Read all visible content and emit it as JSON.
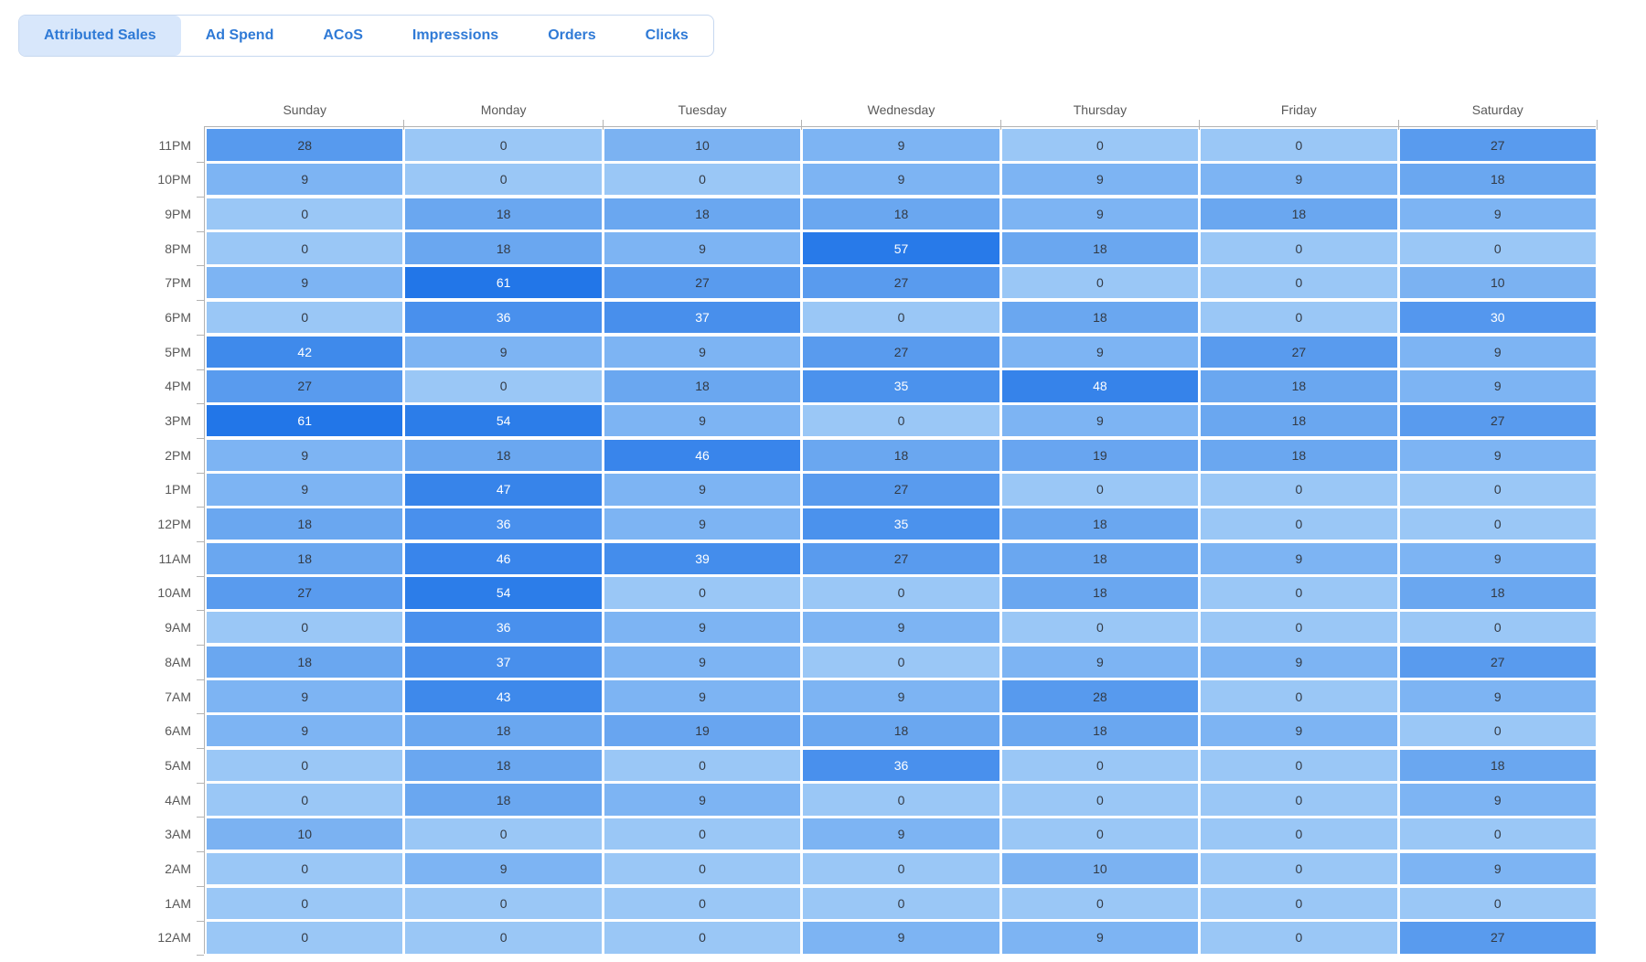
{
  "tabs": {
    "items": [
      {
        "label": "Attributed Sales",
        "active": true
      },
      {
        "label": "Ad Spend",
        "active": false
      },
      {
        "label": "ACoS",
        "active": false
      },
      {
        "label": "Impressions",
        "active": false
      },
      {
        "label": "Orders",
        "active": false
      },
      {
        "label": "Clicks",
        "active": false
      }
    ]
  },
  "chart_data": {
    "type": "heatmap",
    "title": "Attributed Sales",
    "columns": [
      "Sunday",
      "Monday",
      "Tuesday",
      "Wednesday",
      "Thursday",
      "Friday",
      "Saturday"
    ],
    "rows": [
      "11PM",
      "10PM",
      "9PM",
      "8PM",
      "7PM",
      "6PM",
      "5PM",
      "4PM",
      "3PM",
      "2PM",
      "1PM",
      "12PM",
      "11AM",
      "10AM",
      "9AM",
      "8AM",
      "7AM",
      "6AM",
      "5AM",
      "4AM",
      "3AM",
      "2AM",
      "1AM",
      "12AM"
    ],
    "values": [
      [
        28,
        0,
        10,
        9,
        0,
        0,
        27
      ],
      [
        9,
        0,
        0,
        9,
        9,
        9,
        18
      ],
      [
        0,
        18,
        18,
        18,
        9,
        18,
        9
      ],
      [
        0,
        18,
        9,
        57,
        18,
        0,
        0
      ],
      [
        9,
        61,
        27,
        27,
        0,
        0,
        10
      ],
      [
        0,
        36,
        37,
        0,
        18,
        0,
        30
      ],
      [
        42,
        9,
        9,
        27,
        9,
        27,
        9
      ],
      [
        27,
        0,
        18,
        35,
        48,
        18,
        9
      ],
      [
        61,
        54,
        9,
        0,
        9,
        18,
        27
      ],
      [
        9,
        18,
        46,
        18,
        19,
        18,
        9
      ],
      [
        9,
        47,
        9,
        27,
        0,
        0,
        0
      ],
      [
        18,
        36,
        9,
        35,
        18,
        0,
        0
      ],
      [
        18,
        46,
        39,
        27,
        18,
        9,
        9
      ],
      [
        27,
        54,
        0,
        0,
        18,
        0,
        18
      ],
      [
        0,
        36,
        9,
        9,
        0,
        0,
        0
      ],
      [
        18,
        37,
        9,
        0,
        9,
        9,
        27
      ],
      [
        9,
        43,
        9,
        9,
        28,
        0,
        9
      ],
      [
        9,
        18,
        19,
        18,
        18,
        9,
        0
      ],
      [
        0,
        18,
        0,
        36,
        0,
        0,
        18
      ],
      [
        0,
        18,
        9,
        0,
        0,
        0,
        9
      ],
      [
        10,
        0,
        0,
        9,
        0,
        0,
        0
      ],
      [
        0,
        9,
        0,
        0,
        10,
        0,
        9
      ],
      [
        0,
        0,
        0,
        0,
        0,
        0,
        0
      ],
      [
        0,
        0,
        0,
        9,
        9,
        0,
        27
      ]
    ],
    "max_value": 61,
    "colors": {
      "low": "#9AC7F6",
      "high": "#2276E8"
    },
    "text_colors": {
      "dark": "#333A44",
      "light": "#FFFFFF"
    },
    "white_text_threshold": 30,
    "axis_color": "#B3B3B3",
    "label_color": "#595959",
    "legend_position": "none",
    "grid": false
  }
}
